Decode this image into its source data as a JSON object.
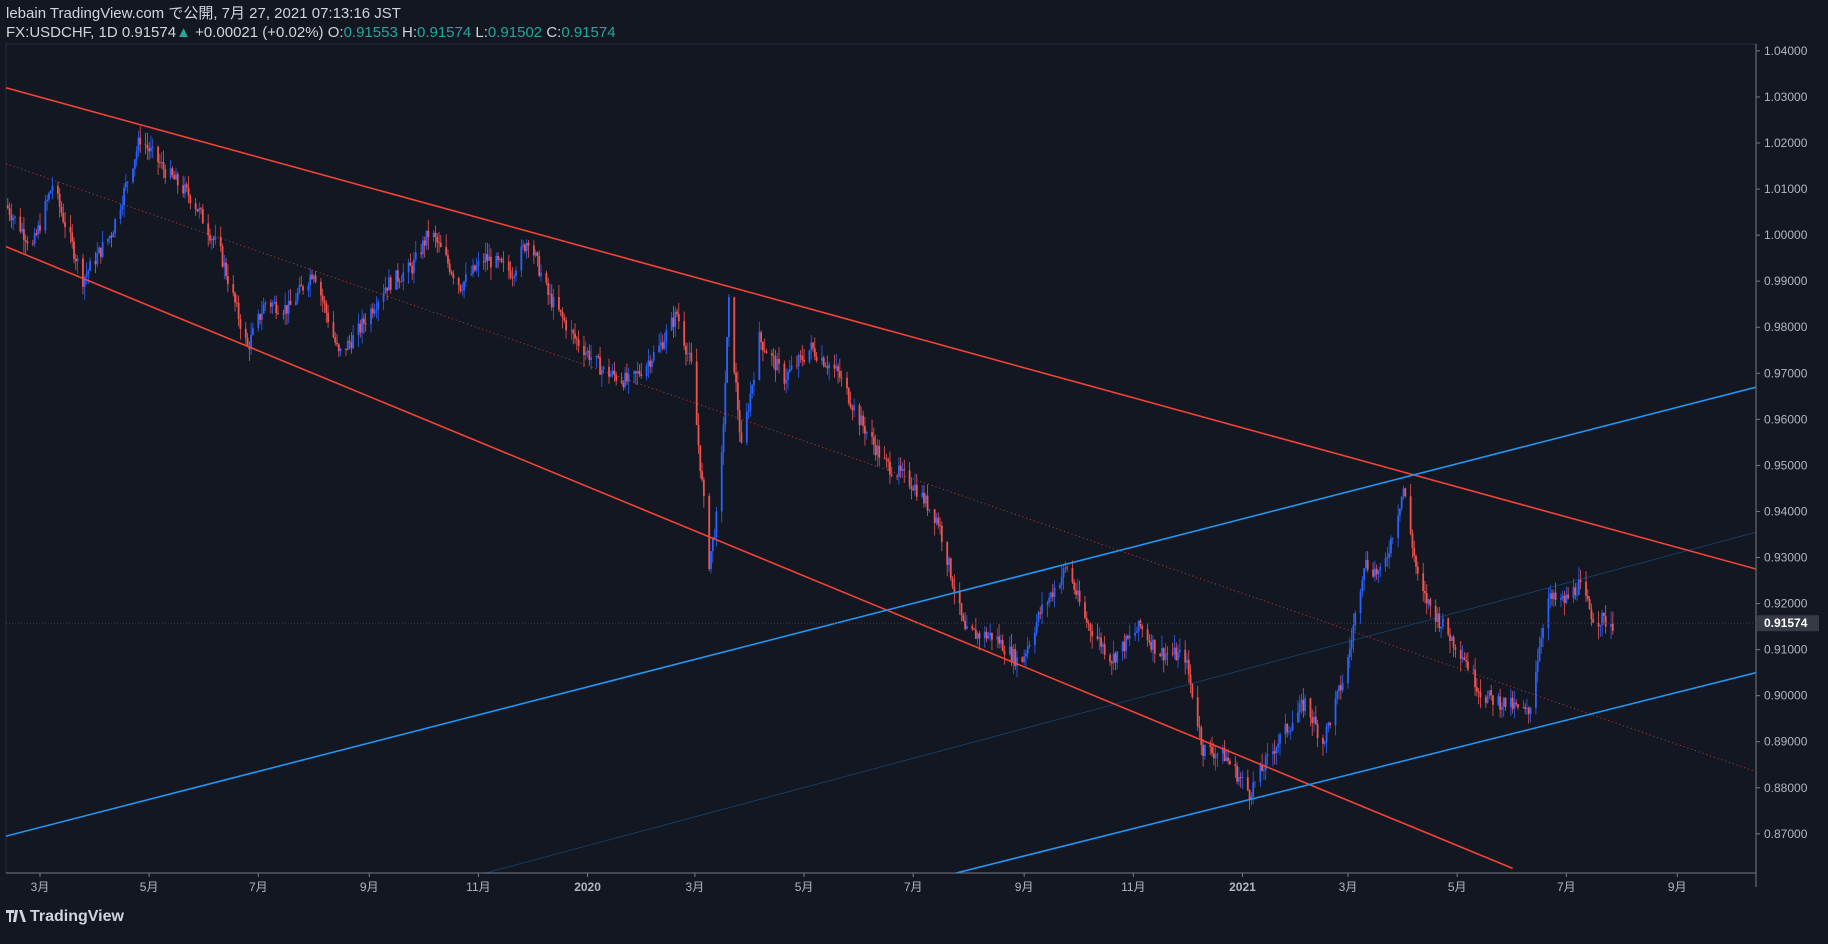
{
  "header": {
    "publisher": "lebain TradingView.com で公開, 7月 27, 2021 07:13:16 JST",
    "symbol": "FX:USDCHF, 1D",
    "last": "0.91574",
    "change_arrow": "▲",
    "change": "+0.00021 (+0.02%)",
    "open_label": "O:",
    "open": "0.91553",
    "high_label": "H:",
    "high": "0.91574",
    "low_label": "L:",
    "low": "0.91502",
    "close_label": "C:",
    "close": "0.91574"
  },
  "footer": {
    "logo_text": "TradingView",
    "logo_icon": "tradingview-logo-icon"
  },
  "colors": {
    "background": "#131722",
    "up": "#2962ff",
    "down": "#ef5350",
    "channel_red": "#f44336",
    "channel_blue": "#2196f3",
    "text": "#d1d4dc",
    "green": "#26a69a"
  },
  "chart_data": {
    "type": "candlestick",
    "symbol": "FX:USDCHF",
    "interval": "1D",
    "ylim": [
      0.8615,
      1.0415
    ],
    "price_ticks": [
      "1.04000",
      "1.03000",
      "1.02000",
      "1.01000",
      "1.00000",
      "0.99000",
      "0.98000",
      "0.97000",
      "0.96000",
      "0.95000",
      "0.94000",
      "0.93000",
      "0.92000",
      "0.91000",
      "0.90000",
      "0.89000",
      "0.88000",
      "0.87000"
    ],
    "current_price": "0.91574",
    "time_ticks": [
      {
        "label": "3月",
        "date": "2019-03-01"
      },
      {
        "label": "5月",
        "date": "2019-05-01"
      },
      {
        "label": "7月",
        "date": "2019-07-01"
      },
      {
        "label": "9月",
        "date": "2019-09-01"
      },
      {
        "label": "11月",
        "date": "2019-11-01"
      },
      {
        "label": "2020",
        "date": "2020-01-01"
      },
      {
        "label": "3月",
        "date": "2020-03-01"
      },
      {
        "label": "5月",
        "date": "2020-05-01"
      },
      {
        "label": "7月",
        "date": "2020-07-01"
      },
      {
        "label": "9月",
        "date": "2020-09-01"
      },
      {
        "label": "11月",
        "date": "2020-11-01"
      },
      {
        "label": "2021",
        "date": "2021-01-01"
      },
      {
        "label": "3月",
        "date": "2021-03-01"
      },
      {
        "label": "5月",
        "date": "2021-05-01"
      },
      {
        "label": "7月",
        "date": "2021-07-01"
      },
      {
        "label": "9月",
        "date": "2021-09-01"
      }
    ],
    "xlim": [
      "2019-02-10",
      "2021-10-15"
    ],
    "price_path": [
      [
        "2019-02-10",
        1.0065
      ],
      [
        "2019-02-25",
        0.9975
      ],
      [
        "2019-03-08",
        1.011
      ],
      [
        "2019-03-25",
        0.9905
      ],
      [
        "2019-04-10",
        1.0005
      ],
      [
        "2019-04-26",
        1.021
      ],
      [
        "2019-05-10",
        1.014
      ],
      [
        "2019-05-25",
        1.008
      ],
      [
        "2019-06-10",
        0.996
      ],
      [
        "2019-06-25",
        0.9755
      ],
      [
        "2019-07-05",
        0.9855
      ],
      [
        "2019-07-18",
        0.984
      ],
      [
        "2019-08-01",
        0.9925
      ],
      [
        "2019-08-15",
        0.974
      ],
      [
        "2019-08-25",
        0.9785
      ],
      [
        "2019-09-10",
        0.989
      ],
      [
        "2019-09-25",
        0.993
      ],
      [
        "2019-10-05",
        1.001
      ],
      [
        "2019-10-22",
        0.989
      ],
      [
        "2019-11-05",
        0.995
      ],
      [
        "2019-11-20",
        0.992
      ],
      [
        "2019-11-29",
        0.9995
      ],
      [
        "2019-12-10",
        0.987
      ],
      [
        "2019-12-24",
        0.978
      ],
      [
        "2020-01-10",
        0.9705
      ],
      [
        "2020-01-25",
        0.968
      ],
      [
        "2020-02-10",
        0.9755
      ],
      [
        "2020-02-20",
        0.983
      ],
      [
        "2020-02-28",
        0.9715
      ],
      [
        "2020-03-09",
        0.929
      ],
      [
        "2020-03-15",
        0.943
      ],
      [
        "2020-03-20",
        0.985
      ],
      [
        "2020-03-27",
        0.9535
      ],
      [
        "2020-04-06",
        0.9775
      ],
      [
        "2020-04-20",
        0.969
      ],
      [
        "2020-05-05",
        0.9755
      ],
      [
        "2020-05-20",
        0.97
      ],
      [
        "2020-06-01",
        0.96
      ],
      [
        "2020-06-15",
        0.9505
      ],
      [
        "2020-07-01",
        0.946
      ],
      [
        "2020-07-15",
        0.938
      ],
      [
        "2020-07-30",
        0.9135
      ],
      [
        "2020-08-15",
        0.913
      ],
      [
        "2020-08-30",
        0.907
      ],
      [
        "2020-09-10",
        0.918
      ],
      [
        "2020-09-25",
        0.928
      ],
      [
        "2020-10-05",
        0.9165
      ],
      [
        "2020-10-20",
        0.908
      ],
      [
        "2020-11-05",
        0.915
      ],
      [
        "2020-11-15",
        0.9095
      ],
      [
        "2020-11-30",
        0.9085
      ],
      [
        "2020-12-10",
        0.8885
      ],
      [
        "2020-12-22",
        0.887
      ],
      [
        "2021-01-05",
        0.879
      ],
      [
        "2021-01-20",
        0.8895
      ],
      [
        "2021-02-05",
        0.8985
      ],
      [
        "2021-02-15",
        0.89
      ],
      [
        "2021-02-28",
        0.9055
      ],
      [
        "2021-03-10",
        0.929
      ],
      [
        "2021-03-20",
        0.926
      ],
      [
        "2021-04-01",
        0.945
      ],
      [
        "2021-04-10",
        0.923
      ],
      [
        "2021-04-25",
        0.914
      ],
      [
        "2021-05-05",
        0.9085
      ],
      [
        "2021-05-15",
        0.9
      ],
      [
        "2021-05-30",
        0.898
      ],
      [
        "2021-06-10",
        0.896
      ],
      [
        "2021-06-20",
        0.921
      ],
      [
        "2021-06-30",
        0.9205
      ],
      [
        "2021-07-08",
        0.924
      ],
      [
        "2021-07-16",
        0.917
      ],
      [
        "2021-07-27",
        0.9157
      ]
    ],
    "trend_lines": [
      {
        "name": "descending-channel-top",
        "color": "#f44336",
        "style": "solid",
        "points": [
          [
            "2019-02-10",
            1.032
          ],
          [
            "2021-10-15",
            0.9275
          ]
        ]
      },
      {
        "name": "descending-channel-bottom",
        "color": "#f44336",
        "style": "solid",
        "points": [
          [
            "2019-02-10",
            0.9975
          ],
          [
            "2021-06-01",
            0.8625
          ]
        ]
      },
      {
        "name": "descending-channel-mid",
        "color": "#f44336",
        "style": "dotted",
        "points": [
          [
            "2019-02-10",
            1.0155
          ],
          [
            "2021-10-15",
            0.8835
          ]
        ]
      },
      {
        "name": "ascending-channel-upper",
        "color": "#2196f3",
        "style": "solid",
        "points": [
          [
            "2019-02-10",
            0.8695
          ],
          [
            "2021-10-15",
            0.967
          ]
        ]
      },
      {
        "name": "ascending-channel-lower",
        "color": "#2196f3",
        "style": "solid",
        "points": [
          [
            "2020-07-25",
            0.8615
          ],
          [
            "2021-10-15",
            0.905
          ]
        ]
      },
      {
        "name": "ascending-channel-mid",
        "color": "#2196f3",
        "style": "faint",
        "points": [
          [
            "2019-11-05",
            0.8615
          ],
          [
            "2021-10-15",
            0.9355
          ]
        ]
      }
    ]
  }
}
